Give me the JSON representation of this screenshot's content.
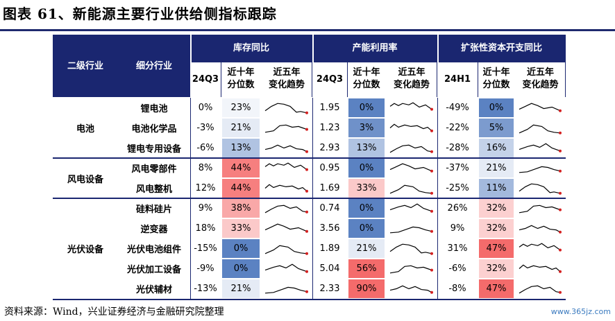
{
  "title": "图表 61、新能源主要行业供给侧指标跟踪",
  "header": {
    "level2": "二级行业",
    "sub": "细分行业",
    "groups": [
      {
        "name": "库存同比",
        "c1": "24Q3",
        "c2a": "近十年",
        "c2b": "分位数",
        "c3a": "近五年",
        "c3b": "变化趋势"
      },
      {
        "name": "产能利用率",
        "c1": "24Q3",
        "c2a": "近十年",
        "c2b": "分位数",
        "c3a": "近五年",
        "c3b": "变化趋势"
      },
      {
        "name": "扩张性资本开支同比",
        "c1": "24H1",
        "c2a": "近十年",
        "c2b": "分位数",
        "c3a": "近五年",
        "c3b": "变化趋势"
      }
    ]
  },
  "sections": [
    "电池",
    "风电设备",
    "光伏设备"
  ],
  "rows": [
    {
      "name": "锂电池",
      "inv": "0%",
      "inv_pct": "23%",
      "util": "1.95",
      "util_pct": "0%",
      "capex": "-49%",
      "capex_pct": "0%"
    },
    {
      "name": "电池化学品",
      "inv": "-3%",
      "inv_pct": "21%",
      "util": "1.23",
      "util_pct": "3%",
      "capex": "-22%",
      "capex_pct": "5%"
    },
    {
      "name": "锂电专用设备",
      "inv": "-6%",
      "inv_pct": "13%",
      "util": "2.93",
      "util_pct": "13%",
      "capex": "-28%",
      "capex_pct": "16%"
    },
    {
      "name": "风电零部件",
      "inv": "8%",
      "inv_pct": "44%",
      "util": "0.95",
      "util_pct": "0%",
      "capex": "-37%",
      "capex_pct": "21%"
    },
    {
      "name": "风电整机",
      "inv": "12%",
      "inv_pct": "44%",
      "util": "1.69",
      "util_pct": "33%",
      "capex": "-25%",
      "capex_pct": "11%"
    },
    {
      "name": "硅料硅片",
      "inv": "9%",
      "inv_pct": "38%",
      "util": "0.74",
      "util_pct": "0%",
      "capex": "26%",
      "capex_pct": "32%"
    },
    {
      "name": "逆变器",
      "inv": "18%",
      "inv_pct": "33%",
      "util": "3.56",
      "util_pct": "0%",
      "capex": "9%",
      "capex_pct": "32%"
    },
    {
      "name": "光伏电池组件",
      "inv": "-15%",
      "inv_pct": "0%",
      "util": "1.89",
      "util_pct": "21%",
      "capex": "31%",
      "capex_pct": "47%"
    },
    {
      "name": "光伏加工设备",
      "inv": "-9%",
      "inv_pct": "0%",
      "util": "5.04",
      "util_pct": "56%",
      "capex": "-6%",
      "capex_pct": "32%"
    },
    {
      "name": "光伏辅材",
      "inv": "-13%",
      "inv_pct": "21%",
      "util": "2.33",
      "util_pct": "90%",
      "capex": "-8%",
      "capex_pct": "47%"
    }
  ],
  "colors": {
    "header_bg": "#1a2670",
    "spark_end": "#d42020",
    "heat_low": "#5b82c2",
    "heat_mid": "#ffffff",
    "heat_high": "#f46b6b"
  },
  "source": "资料来源：Wind，兴业证券经济与金融研究院整理",
  "watermark": "www.365jz.com"
}
